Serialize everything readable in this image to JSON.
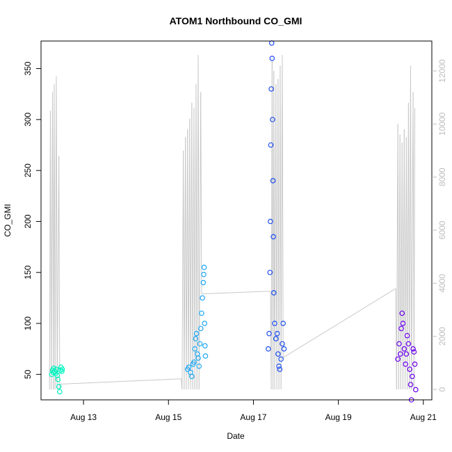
{
  "chart_data": {
    "type": "scatter",
    "title": "ATOM1 Northbound CO_GMI",
    "xlabel": "Date",
    "ylabel": "CO_GMI",
    "x_ticks": [
      {
        "day": 13,
        "label": "Aug 13"
      },
      {
        "day": 15,
        "label": "Aug 15"
      },
      {
        "day": 17,
        "label": "Aug 17"
      },
      {
        "day": 19,
        "label": "Aug 19"
      },
      {
        "day": 21,
        "label": "Aug 21"
      }
    ],
    "xlim_days": [
      12.0,
      21.2
    ],
    "ylim": [
      25,
      377
    ],
    "y_ticks": [
      50,
      100,
      150,
      200,
      250,
      300,
      350
    ],
    "y2lim": [
      0,
      12000
    ],
    "y2_ticks": [
      0,
      2000,
      4000,
      6000,
      8000,
      10000,
      12000
    ],
    "grid": false,
    "point_style": "open-circle",
    "secondary_line_color": "#c8c8c8",
    "series": [
      {
        "color": "#00f5c0",
        "points": [
          {
            "x": 12.25,
            "y": 50
          },
          {
            "x": 12.27,
            "y": 54
          },
          {
            "x": 12.29,
            "y": 52
          },
          {
            "x": 12.3,
            "y": 56
          },
          {
            "x": 12.32,
            "y": 53
          },
          {
            "x": 12.34,
            "y": 51
          },
          {
            "x": 12.36,
            "y": 55
          },
          {
            "x": 12.38,
            "y": 49
          },
          {
            "x": 12.4,
            "y": 45
          },
          {
            "x": 12.42,
            "y": 38
          },
          {
            "x": 12.44,
            "y": 33
          },
          {
            "x": 12.45,
            "y": 54
          },
          {
            "x": 12.47,
            "y": 57
          },
          {
            "x": 12.49,
            "y": 53
          },
          {
            "x": 12.5,
            "y": 55
          }
        ]
      },
      {
        "color": "#1ea8f5",
        "points": [
          {
            "x": 15.45,
            "y": 55
          },
          {
            "x": 15.48,
            "y": 57
          },
          {
            "x": 15.52,
            "y": 52
          },
          {
            "x": 15.55,
            "y": 48
          },
          {
            "x": 15.58,
            "y": 60
          },
          {
            "x": 15.6,
            "y": 62
          },
          {
            "x": 15.62,
            "y": 75
          },
          {
            "x": 15.64,
            "y": 85
          },
          {
            "x": 15.66,
            "y": 90
          },
          {
            "x": 15.68,
            "y": 70
          },
          {
            "x": 15.7,
            "y": 66
          },
          {
            "x": 15.72,
            "y": 58
          },
          {
            "x": 15.74,
            "y": 80
          },
          {
            "x": 15.76,
            "y": 95
          },
          {
            "x": 15.78,
            "y": 110
          },
          {
            "x": 15.8,
            "y": 125
          },
          {
            "x": 15.82,
            "y": 140
          },
          {
            "x": 15.83,
            "y": 148
          },
          {
            "x": 15.84,
            "y": 155
          },
          {
            "x": 15.85,
            "y": 100
          },
          {
            "x": 15.86,
            "y": 78
          },
          {
            "x": 15.87,
            "y": 68
          }
        ]
      },
      {
        "color": "#1f4ff0",
        "points": [
          {
            "x": 17.35,
            "y": 75
          },
          {
            "x": 17.37,
            "y": 90
          },
          {
            "x": 17.39,
            "y": 150
          },
          {
            "x": 17.4,
            "y": 200
          },
          {
            "x": 17.41,
            "y": 275
          },
          {
            "x": 17.42,
            "y": 330
          },
          {
            "x": 17.43,
            "y": 375
          },
          {
            "x": 17.44,
            "y": 360
          },
          {
            "x": 17.45,
            "y": 300
          },
          {
            "x": 17.46,
            "y": 240
          },
          {
            "x": 17.47,
            "y": 185
          },
          {
            "x": 17.48,
            "y": 130
          },
          {
            "x": 17.5,
            "y": 100
          },
          {
            "x": 17.53,
            "y": 85
          },
          {
            "x": 17.56,
            "y": 90
          },
          {
            "x": 17.58,
            "y": 70
          },
          {
            "x": 17.6,
            "y": 58
          },
          {
            "x": 17.62,
            "y": 55
          },
          {
            "x": 17.65,
            "y": 65
          },
          {
            "x": 17.68,
            "y": 80
          },
          {
            "x": 17.7,
            "y": 100
          },
          {
            "x": 17.72,
            "y": 75
          }
        ]
      },
      {
        "color": "#6a00f0",
        "points": [
          {
            "x": 20.4,
            "y": 65
          },
          {
            "x": 20.43,
            "y": 80
          },
          {
            "x": 20.46,
            "y": 70
          },
          {
            "x": 20.48,
            "y": 95
          },
          {
            "x": 20.5,
            "y": 110
          },
          {
            "x": 20.52,
            "y": 100
          },
          {
            "x": 20.55,
            "y": 75
          },
          {
            "x": 20.58,
            "y": 60
          },
          {
            "x": 20.6,
            "y": 70
          },
          {
            "x": 20.62,
            "y": 88
          },
          {
            "x": 20.65,
            "y": 80
          },
          {
            "x": 20.68,
            "y": 55
          },
          {
            "x": 20.7,
            "y": 40
          },
          {
            "x": 20.72,
            "y": 25
          },
          {
            "x": 20.74,
            "y": 48
          },
          {
            "x": 20.76,
            "y": 75
          },
          {
            "x": 20.78,
            "y": 72
          },
          {
            "x": 20.8,
            "y": 60
          },
          {
            "x": 20.82,
            "y": 35
          }
        ]
      }
    ],
    "secondary_series": {
      "name": "",
      "axis": "right",
      "points": [
        {
          "x": 12.2,
          "y": 0
        },
        {
          "x": 12.22,
          "y": 10500
        },
        {
          "x": 12.24,
          "y": 0
        },
        {
          "x": 12.27,
          "y": 11200
        },
        {
          "x": 12.29,
          "y": 0
        },
        {
          "x": 12.31,
          "y": 11500
        },
        {
          "x": 12.33,
          "y": 0
        },
        {
          "x": 12.36,
          "y": 11800
        },
        {
          "x": 12.38,
          "y": 0
        },
        {
          "x": 12.42,
          "y": 8800
        },
        {
          "x": 12.44,
          "y": 0
        },
        {
          "x": 12.46,
          "y": 200
        },
        {
          "x": 15.3,
          "y": 400
        },
        {
          "x": 15.32,
          "y": 0
        },
        {
          "x": 15.35,
          "y": 9000
        },
        {
          "x": 15.37,
          "y": 0
        },
        {
          "x": 15.4,
          "y": 9500
        },
        {
          "x": 15.42,
          "y": 0
        },
        {
          "x": 15.45,
          "y": 9800
        },
        {
          "x": 15.47,
          "y": 0
        },
        {
          "x": 15.5,
          "y": 10200
        },
        {
          "x": 15.52,
          "y": 0
        },
        {
          "x": 15.55,
          "y": 10800
        },
        {
          "x": 15.57,
          "y": 0
        },
        {
          "x": 15.6,
          "y": 10600
        },
        {
          "x": 15.62,
          "y": 0
        },
        {
          "x": 15.65,
          "y": 11500
        },
        {
          "x": 15.67,
          "y": 0
        },
        {
          "x": 15.7,
          "y": 12600
        },
        {
          "x": 15.72,
          "y": 0
        },
        {
          "x": 15.76,
          "y": 11200
        },
        {
          "x": 15.78,
          "y": 3600
        },
        {
          "x": 17.4,
          "y": 3700
        },
        {
          "x": 17.42,
          "y": 0
        },
        {
          "x": 17.44,
          "y": 12400
        },
        {
          "x": 17.46,
          "y": 0
        },
        {
          "x": 17.48,
          "y": 12000
        },
        {
          "x": 17.5,
          "y": 0
        },
        {
          "x": 17.53,
          "y": 11500
        },
        {
          "x": 17.55,
          "y": 0
        },
        {
          "x": 17.58,
          "y": 11700
        },
        {
          "x": 17.6,
          "y": 0
        },
        {
          "x": 17.63,
          "y": 12200
        },
        {
          "x": 17.65,
          "y": 0
        },
        {
          "x": 17.68,
          "y": 12600
        },
        {
          "x": 17.7,
          "y": 1200
        },
        {
          "x": 20.35,
          "y": 3800
        },
        {
          "x": 20.37,
          "y": 0
        },
        {
          "x": 20.4,
          "y": 10000
        },
        {
          "x": 20.42,
          "y": 0
        },
        {
          "x": 20.45,
          "y": 9600
        },
        {
          "x": 20.47,
          "y": 0
        },
        {
          "x": 20.5,
          "y": 9300
        },
        {
          "x": 20.52,
          "y": 0
        },
        {
          "x": 20.55,
          "y": 9800
        },
        {
          "x": 20.57,
          "y": 0
        },
        {
          "x": 20.6,
          "y": 9500
        },
        {
          "x": 20.62,
          "y": 0
        },
        {
          "x": 20.65,
          "y": 10800
        },
        {
          "x": 20.67,
          "y": 0
        },
        {
          "x": 20.7,
          "y": 12200
        },
        {
          "x": 20.72,
          "y": 0
        },
        {
          "x": 20.76,
          "y": 11200
        },
        {
          "x": 20.78,
          "y": 0
        },
        {
          "x": 20.8,
          "y": 10600
        }
      ]
    }
  }
}
